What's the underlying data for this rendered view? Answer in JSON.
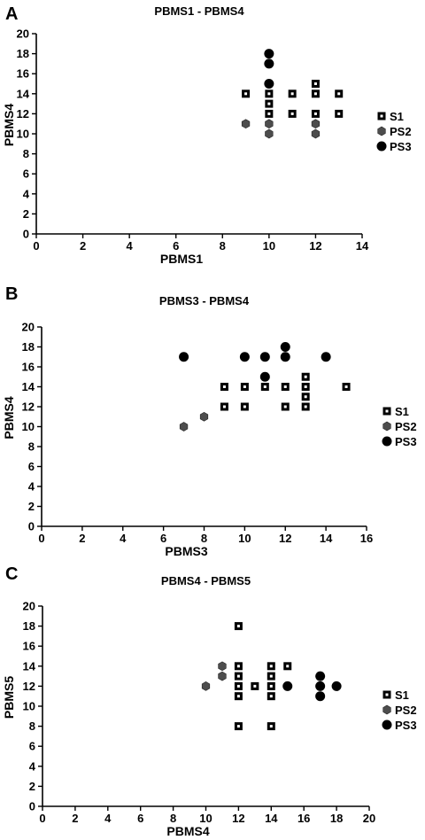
{
  "chart_data": [
    {
      "type": "scatter",
      "panel_letter": "A",
      "title": "PBMS1 - PBMS4",
      "xlabel": "PBMS1",
      "ylabel": "PBMS4",
      "xlim": [
        0,
        14
      ],
      "ylim": [
        0,
        20
      ],
      "xticks": [
        0,
        2,
        4,
        6,
        8,
        10,
        12,
        14
      ],
      "yticks": [
        0,
        2,
        4,
        6,
        8,
        10,
        12,
        14,
        16,
        18,
        20
      ],
      "legend_position": "right",
      "series": [
        {
          "name": "S1",
          "marker": "square",
          "points": [
            [
              9,
              14
            ],
            [
              10,
              14
            ],
            [
              10,
              13
            ],
            [
              10,
              12
            ],
            [
              11,
              14
            ],
            [
              11,
              12
            ],
            [
              12,
              15
            ],
            [
              12,
              14
            ],
            [
              12,
              12
            ],
            [
              13,
              14
            ],
            [
              13,
              12
            ]
          ]
        },
        {
          "name": "PS2",
          "marker": "hexagon",
          "points": [
            [
              9,
              11
            ],
            [
              10,
              11
            ],
            [
              10,
              10
            ],
            [
              12,
              11
            ],
            [
              12,
              10
            ]
          ]
        },
        {
          "name": "PS3",
          "marker": "circle",
          "points": [
            [
              10,
              18
            ],
            [
              10,
              17
            ],
            [
              10,
              15
            ]
          ]
        }
      ]
    },
    {
      "type": "scatter",
      "panel_letter": "B",
      "title": "PBMS3 - PBMS4",
      "xlabel": "PBMS3",
      "ylabel": "PBMS4",
      "xlim": [
        0,
        16
      ],
      "ylim": [
        0,
        20
      ],
      "xticks": [
        0,
        2,
        4,
        6,
        8,
        10,
        12,
        14,
        16
      ],
      "yticks": [
        0,
        2,
        4,
        6,
        8,
        10,
        12,
        14,
        16,
        18,
        20
      ],
      "legend_position": "right",
      "series": [
        {
          "name": "S1",
          "marker": "square",
          "points": [
            [
              9,
              14
            ],
            [
              9,
              12
            ],
            [
              10,
              14
            ],
            [
              10,
              12
            ],
            [
              11,
              14
            ],
            [
              12,
              14
            ],
            [
              12,
              12
            ],
            [
              13,
              15
            ],
            [
              13,
              14
            ],
            [
              13,
              13
            ],
            [
              13,
              12
            ],
            [
              15,
              14
            ]
          ]
        },
        {
          "name": "PS2",
          "marker": "hexagon",
          "points": [
            [
              7,
              10
            ],
            [
              8,
              11
            ]
          ]
        },
        {
          "name": "PS3",
          "marker": "circle",
          "points": [
            [
              7,
              17
            ],
            [
              10,
              17
            ],
            [
              11,
              17
            ],
            [
              11,
              15
            ],
            [
              12,
              18
            ],
            [
              12,
              17
            ],
            [
              14,
              17
            ]
          ]
        }
      ]
    },
    {
      "type": "scatter",
      "panel_letter": "C",
      "title": "PBMS4 - PBMS5",
      "xlabel": "PBMS4",
      "ylabel": "PBMS5",
      "xlim": [
        0,
        20
      ],
      "ylim": [
        0,
        20
      ],
      "xticks": [
        0,
        2,
        4,
        6,
        8,
        10,
        12,
        14,
        16,
        18,
        20
      ],
      "yticks": [
        0,
        2,
        4,
        6,
        8,
        10,
        12,
        14,
        16,
        18,
        20
      ],
      "legend_position": "right",
      "series": [
        {
          "name": "S1",
          "marker": "square",
          "points": [
            [
              12,
              18
            ],
            [
              12,
              14
            ],
            [
              12,
              13
            ],
            [
              12,
              12
            ],
            [
              12,
              11
            ],
            [
              12,
              8
            ],
            [
              13,
              12
            ],
            [
              14,
              14
            ],
            [
              14,
              13
            ],
            [
              14,
              12
            ],
            [
              14,
              11
            ],
            [
              14,
              8
            ],
            [
              15,
              14
            ]
          ]
        },
        {
          "name": "PS2",
          "marker": "hexagon",
          "points": [
            [
              10,
              12
            ],
            [
              11,
              14
            ],
            [
              11,
              13
            ]
          ]
        },
        {
          "name": "PS3",
          "marker": "circle",
          "points": [
            [
              15,
              12
            ],
            [
              17,
              13
            ],
            [
              17,
              12
            ],
            [
              17,
              11
            ],
            [
              18,
              12
            ]
          ]
        }
      ]
    }
  ]
}
